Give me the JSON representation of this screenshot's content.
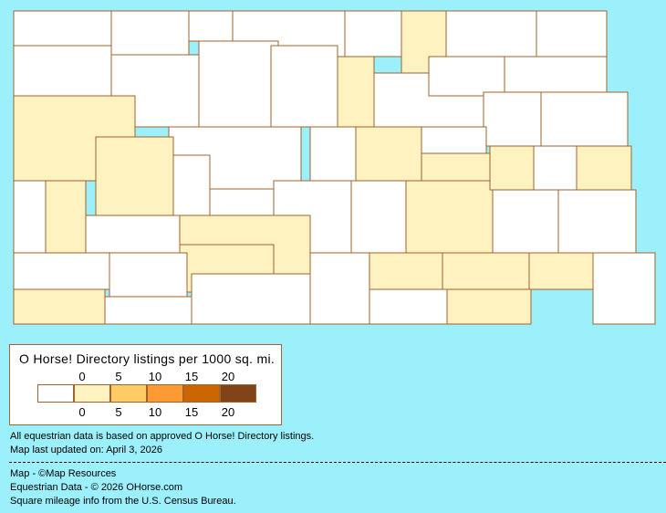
{
  "legend": {
    "title": "O Horse! Directory listings per 1000 sq. mi.",
    "top_ticks": [
      "0",
      "5",
      "10",
      "15",
      "20"
    ],
    "bottom_ticks": [
      "0",
      "5",
      "10",
      "15",
      "20"
    ],
    "colors": [
      "#ffffff",
      "#fdf2c0",
      "#fdcc66",
      "#fd9a33",
      "#cc6600",
      "#804418"
    ]
  },
  "colors": {
    "background": "#9cf0fc",
    "border": "#a0632b"
  },
  "county_levels": [
    0,
    0,
    0,
    0,
    0,
    1,
    0,
    0,
    0,
    0,
    1,
    0,
    0,
    1,
    0,
    0,
    0,
    0,
    0,
    0,
    1,
    0,
    0,
    1,
    0,
    0,
    0,
    0,
    1,
    1,
    1,
    0,
    1,
    0,
    0,
    0,
    1,
    0,
    1,
    1,
    0,
    0,
    1,
    0,
    0,
    0,
    1,
    0,
    1,
    1,
    1,
    0
  ],
  "notes": {
    "line1": "All equestrian data is based on approved O Horse! Directory listings.",
    "line2": "Map last updated on: April 3, 2026",
    "credit1": "Map - ©Map Resources",
    "credit2": "Equestrian Data - © 2026 OHorse.com",
    "credit3": "Square mileage info from the U.S. Census Bureau."
  }
}
